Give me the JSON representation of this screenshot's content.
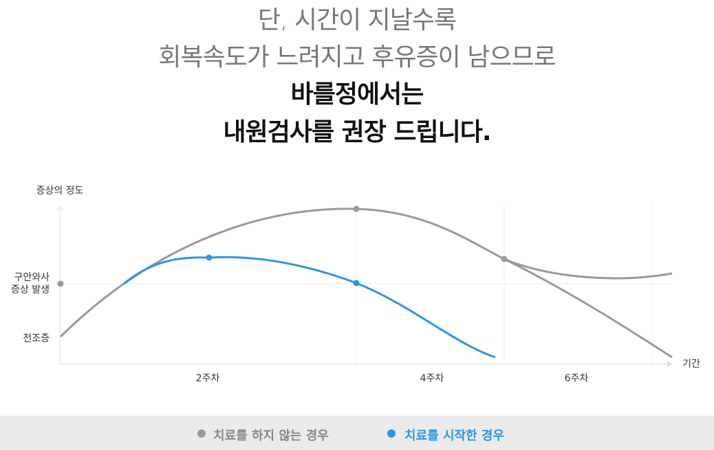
{
  "heading": {
    "lines": [
      "단, 시간이 지날수록",
      "회복속도가 느려지고 후유증이 남으므로",
      "바를정에서는",
      "내원검사를 권장 드립니다."
    ]
  },
  "diagram": {
    "y_axis_title": "증상의 정도",
    "y_labels": [
      "구안와사",
      "증상 발생",
      "전조증"
    ],
    "x_axis_title": "기간",
    "x_labels": [
      "2주차",
      "4주차",
      "6주차"
    ]
  },
  "legend": {
    "items": [
      "치료를 하지 않는 경우",
      "치료를 시작한 경우"
    ]
  }
}
